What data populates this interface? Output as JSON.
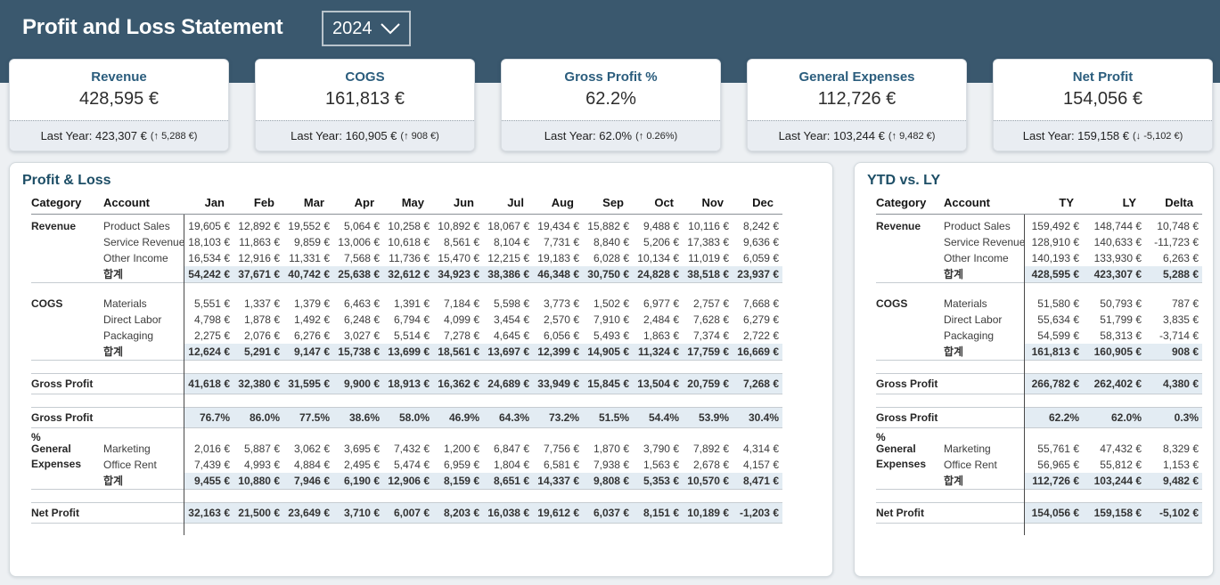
{
  "header": {
    "title": "Profit and Loss Statement",
    "year": "2024"
  },
  "kpi_cards": [
    {
      "title": "Revenue",
      "value": "428,595 €",
      "last_year": "Last Year: 423,307 €",
      "delta": "(↑ 5,288 €)"
    },
    {
      "title": "COGS",
      "value": "161,813 €",
      "last_year": "Last Year: 160,905 €",
      "delta": "(↑ 908 €)"
    },
    {
      "title": "Gross Profit %",
      "value": "62.2%",
      "last_year": "Last Year: 62.0%",
      "delta": "(↑ 0.26%)"
    },
    {
      "title": "General Expenses",
      "value": "112,726 €",
      "last_year": "Last Year: 103,244 €",
      "delta": "(↑ 9,482 €)"
    },
    {
      "title": "Net Profit",
      "value": "154,056 €",
      "last_year": "Last Year: 159,158 €",
      "delta": "(↓ -5,102 €)"
    }
  ],
  "pl_table": {
    "title": "Profit & Loss",
    "columns": [
      "Category",
      "Account",
      "Jan",
      "Feb",
      "Mar",
      "Apr",
      "May",
      "Jun",
      "Jul",
      "Aug",
      "Sep",
      "Oct",
      "Nov",
      "Dec"
    ],
    "sections": [
      {
        "category": "Revenue",
        "rows": [
          {
            "account": "Product Sales",
            "values": [
              "19,605 €",
              "12,892 €",
              "19,552 €",
              "5,064 €",
              "10,258 €",
              "10,892 €",
              "18,067 €",
              "19,434 €",
              "15,882 €",
              "9,488 €",
              "10,116 €",
              "8,242 €"
            ]
          },
          {
            "account": "Service Revenue",
            "values": [
              "18,103 €",
              "11,863 €",
              "9,859 €",
              "13,006 €",
              "10,618 €",
              "8,561 €",
              "8,104 €",
              "7,731 €",
              "8,840 €",
              "5,206 €",
              "17,383 €",
              "9,636 €"
            ]
          },
          {
            "account": "Other Income",
            "values": [
              "16,534 €",
              "12,916 €",
              "11,331 €",
              "7,568 €",
              "11,736 €",
              "15,470 €",
              "12,215 €",
              "19,183 €",
              "6,028 €",
              "10,134 €",
              "11,019 €",
              "6,059 €"
            ]
          },
          {
            "account": "합계",
            "total": true,
            "values": [
              "54,242 €",
              "37,671 €",
              "40,742 €",
              "25,638 €",
              "32,612 €",
              "34,923 €",
              "38,386 €",
              "46,348 €",
              "30,750 €",
              "24,828 €",
              "38,518 €",
              "23,937 €"
            ]
          }
        ]
      },
      {
        "category": "COGS",
        "rows": [
          {
            "account": "Materials",
            "values": [
              "5,551 €",
              "1,337 €",
              "1,379 €",
              "6,463 €",
              "1,391 €",
              "7,184 €",
              "5,598 €",
              "3,773 €",
              "1,502 €",
              "6,977 €",
              "2,757 €",
              "7,668 €"
            ]
          },
          {
            "account": "Direct Labor",
            "values": [
              "4,798 €",
              "1,878 €",
              "1,492 €",
              "6,248 €",
              "6,794 €",
              "4,099 €",
              "3,454 €",
              "2,570 €",
              "7,910 €",
              "2,484 €",
              "7,628 €",
              "6,279 €"
            ]
          },
          {
            "account": "Packaging",
            "values": [
              "2,275 €",
              "2,076 €",
              "6,276 €",
              "3,027 €",
              "5,514 €",
              "7,278 €",
              "4,645 €",
              "6,056 €",
              "5,493 €",
              "1,863 €",
              "7,374 €",
              "2,722 €"
            ]
          },
          {
            "account": "합계",
            "total": true,
            "values": [
              "12,624 €",
              "5,291 €",
              "9,147 €",
              "15,738 €",
              "13,699 €",
              "18,561 €",
              "13,697 €",
              "12,399 €",
              "14,905 €",
              "11,324 €",
              "17,759 €",
              "16,669 €"
            ]
          }
        ]
      },
      {
        "category": "Gross Profit",
        "single": true,
        "rows": [
          {
            "account": "",
            "values": [
              "41,618 €",
              "32,380 €",
              "31,595 €",
              "9,900 €",
              "18,913 €",
              "16,362 €",
              "24,689 €",
              "33,949 €",
              "15,845 €",
              "13,504 €",
              "20,759 €",
              "7,268 €"
            ]
          }
        ]
      },
      {
        "category": "Gross Profit %",
        "single": true,
        "rows": [
          {
            "account": "",
            "values": [
              "76.7%",
              "86.0%",
              "77.5%",
              "38.6%",
              "58.0%",
              "46.9%",
              "64.3%",
              "73.2%",
              "51.5%",
              "54.4%",
              "53.9%",
              "30.4%"
            ]
          }
        ]
      },
      {
        "category": "General Expenses",
        "rows": [
          {
            "account": "Marketing",
            "values": [
              "2,016 €",
              "5,887 €",
              "3,062 €",
              "3,695 €",
              "7,432 €",
              "1,200 €",
              "6,847 €",
              "7,756 €",
              "1,870 €",
              "3,790 €",
              "7,892 €",
              "4,314 €"
            ]
          },
          {
            "account": "Office Rent",
            "values": [
              "7,439 €",
              "4,993 €",
              "4,884 €",
              "2,495 €",
              "5,474 €",
              "6,959 €",
              "1,804 €",
              "6,581 €",
              "7,938 €",
              "1,563 €",
              "2,678 €",
              "4,157 €"
            ]
          },
          {
            "account": "합계",
            "total": true,
            "values": [
              "9,455 €",
              "10,880 €",
              "7,946 €",
              "6,190 €",
              "12,906 €",
              "8,159 €",
              "8,651 €",
              "14,337 €",
              "9,808 €",
              "5,353 €",
              "10,570 €",
              "8,471 €"
            ]
          }
        ]
      },
      {
        "category": "Net Profit",
        "single": true,
        "rows": [
          {
            "account": "",
            "values": [
              "32,163 €",
              "21,500 €",
              "23,649 €",
              "3,710 €",
              "6,007 €",
              "8,203 €",
              "16,038 €",
              "19,612 €",
              "6,037 €",
              "8,151 €",
              "10,189 €",
              "-1,203 €"
            ]
          }
        ]
      }
    ]
  },
  "ytd_table": {
    "title": "YTD vs. LY",
    "columns": [
      "Category",
      "Account",
      "TY",
      "LY",
      "Delta"
    ],
    "sections": [
      {
        "category": "Revenue",
        "rows": [
          {
            "account": "Product Sales",
            "values": [
              "159,492 €",
              "148,744 €",
              "10,748 €"
            ]
          },
          {
            "account": "Service Revenue",
            "values": [
              "128,910 €",
              "140,633 €",
              "-11,723 €"
            ]
          },
          {
            "account": "Other Income",
            "values": [
              "140,193 €",
              "133,930 €",
              "6,263 €"
            ]
          },
          {
            "account": "합계",
            "total": true,
            "values": [
              "428,595 €",
              "423,307 €",
              "5,288 €"
            ]
          }
        ]
      },
      {
        "category": "COGS",
        "rows": [
          {
            "account": "Materials",
            "values": [
              "51,580 €",
              "50,793 €",
              "787 €"
            ]
          },
          {
            "account": "Direct Labor",
            "values": [
              "55,634 €",
              "51,799 €",
              "3,835 €"
            ]
          },
          {
            "account": "Packaging",
            "values": [
              "54,599 €",
              "58,313 €",
              "-3,714 €"
            ]
          },
          {
            "account": "합계",
            "total": true,
            "values": [
              "161,813 €",
              "160,905 €",
              "908 €"
            ]
          }
        ]
      },
      {
        "category": "Gross Profit",
        "single": true,
        "rows": [
          {
            "account": "",
            "values": [
              "266,782 €",
              "262,402 €",
              "4,380 €"
            ]
          }
        ]
      },
      {
        "category": "Gross Profit %",
        "single": true,
        "rows": [
          {
            "account": "",
            "values": [
              "62.2%",
              "62.0%",
              "0.3%"
            ]
          }
        ]
      },
      {
        "category": "General Expenses",
        "rows": [
          {
            "account": "Marketing",
            "values": [
              "55,761 €",
              "47,432 €",
              "8,329 €"
            ]
          },
          {
            "account": "Office Rent",
            "values": [
              "56,965 €",
              "55,812 €",
              "1,153 €"
            ]
          },
          {
            "account": "합계",
            "total": true,
            "values": [
              "112,726 €",
              "103,244 €",
              "9,482 €"
            ]
          }
        ]
      },
      {
        "category": "Net Profit",
        "single": true,
        "rows": [
          {
            "account": "",
            "values": [
              "154,056 €",
              "159,158 €",
              "-5,102 €"
            ]
          }
        ]
      }
    ]
  },
  "colors": {
    "header_bg": "#3a586e",
    "card_title": "#2b5d7d",
    "panel_title": "#1d4e66",
    "row_highlight": "#e3ecf3",
    "card_footer_bg": "#e9edf2"
  }
}
